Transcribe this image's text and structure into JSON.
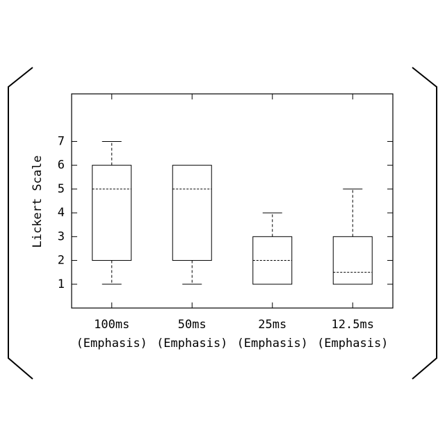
{
  "chart_data": {
    "type": "box",
    "y_label": "Lickert Scale",
    "categories": [
      [
        "100ms",
        "(Emphasis)"
      ],
      [
        "50ms",
        "(Emphasis)"
      ],
      [
        "25ms",
        "(Emphasis)"
      ],
      [
        "12.5ms",
        "(Emphasis)"
      ]
    ],
    "boxes": [
      {
        "min": 1,
        "q1": 2,
        "median": 5,
        "q3": 6,
        "max": 7
      },
      {
        "min": 1,
        "q1": 2,
        "median": 5,
        "q3": 6,
        "max": 6
      },
      {
        "min": 1,
        "q1": 1,
        "median": 2,
        "q3": 3,
        "max": 4
      },
      {
        "min": 1,
        "q1": 1,
        "median": 1.5,
        "q3": 3,
        "max": 5
      }
    ],
    "color": "#000000",
    "ylim": [
      0,
      9
    ],
    "yticks": [
      1,
      2,
      3,
      4,
      5,
      6,
      7
    ]
  }
}
